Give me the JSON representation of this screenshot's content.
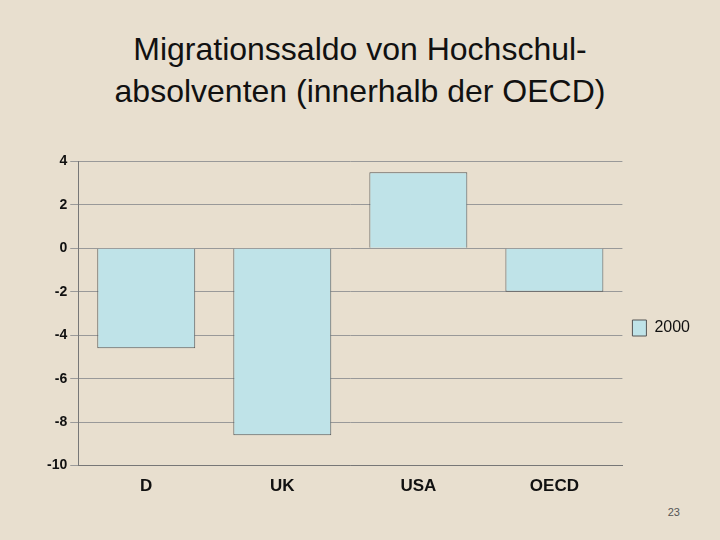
{
  "chart_data": {
    "type": "bar",
    "title": [
      "Migrationssaldo von Hochschul-",
      "absolventen (innerhalb der OECD)"
    ],
    "categories": [
      "D",
      "UK",
      "USA",
      "OECD"
    ],
    "series": [
      {
        "name": "2000",
        "color": "#bfe3e8",
        "values": [
          -4.6,
          -8.6,
          3.5,
          -2.0
        ]
      }
    ],
    "ylim": [
      -10,
      4
    ],
    "yticks": [
      -10,
      -8,
      -6,
      -4,
      -2,
      0,
      2,
      4
    ],
    "grid": true,
    "legend": "right",
    "annotations": [
      "23"
    ]
  }
}
